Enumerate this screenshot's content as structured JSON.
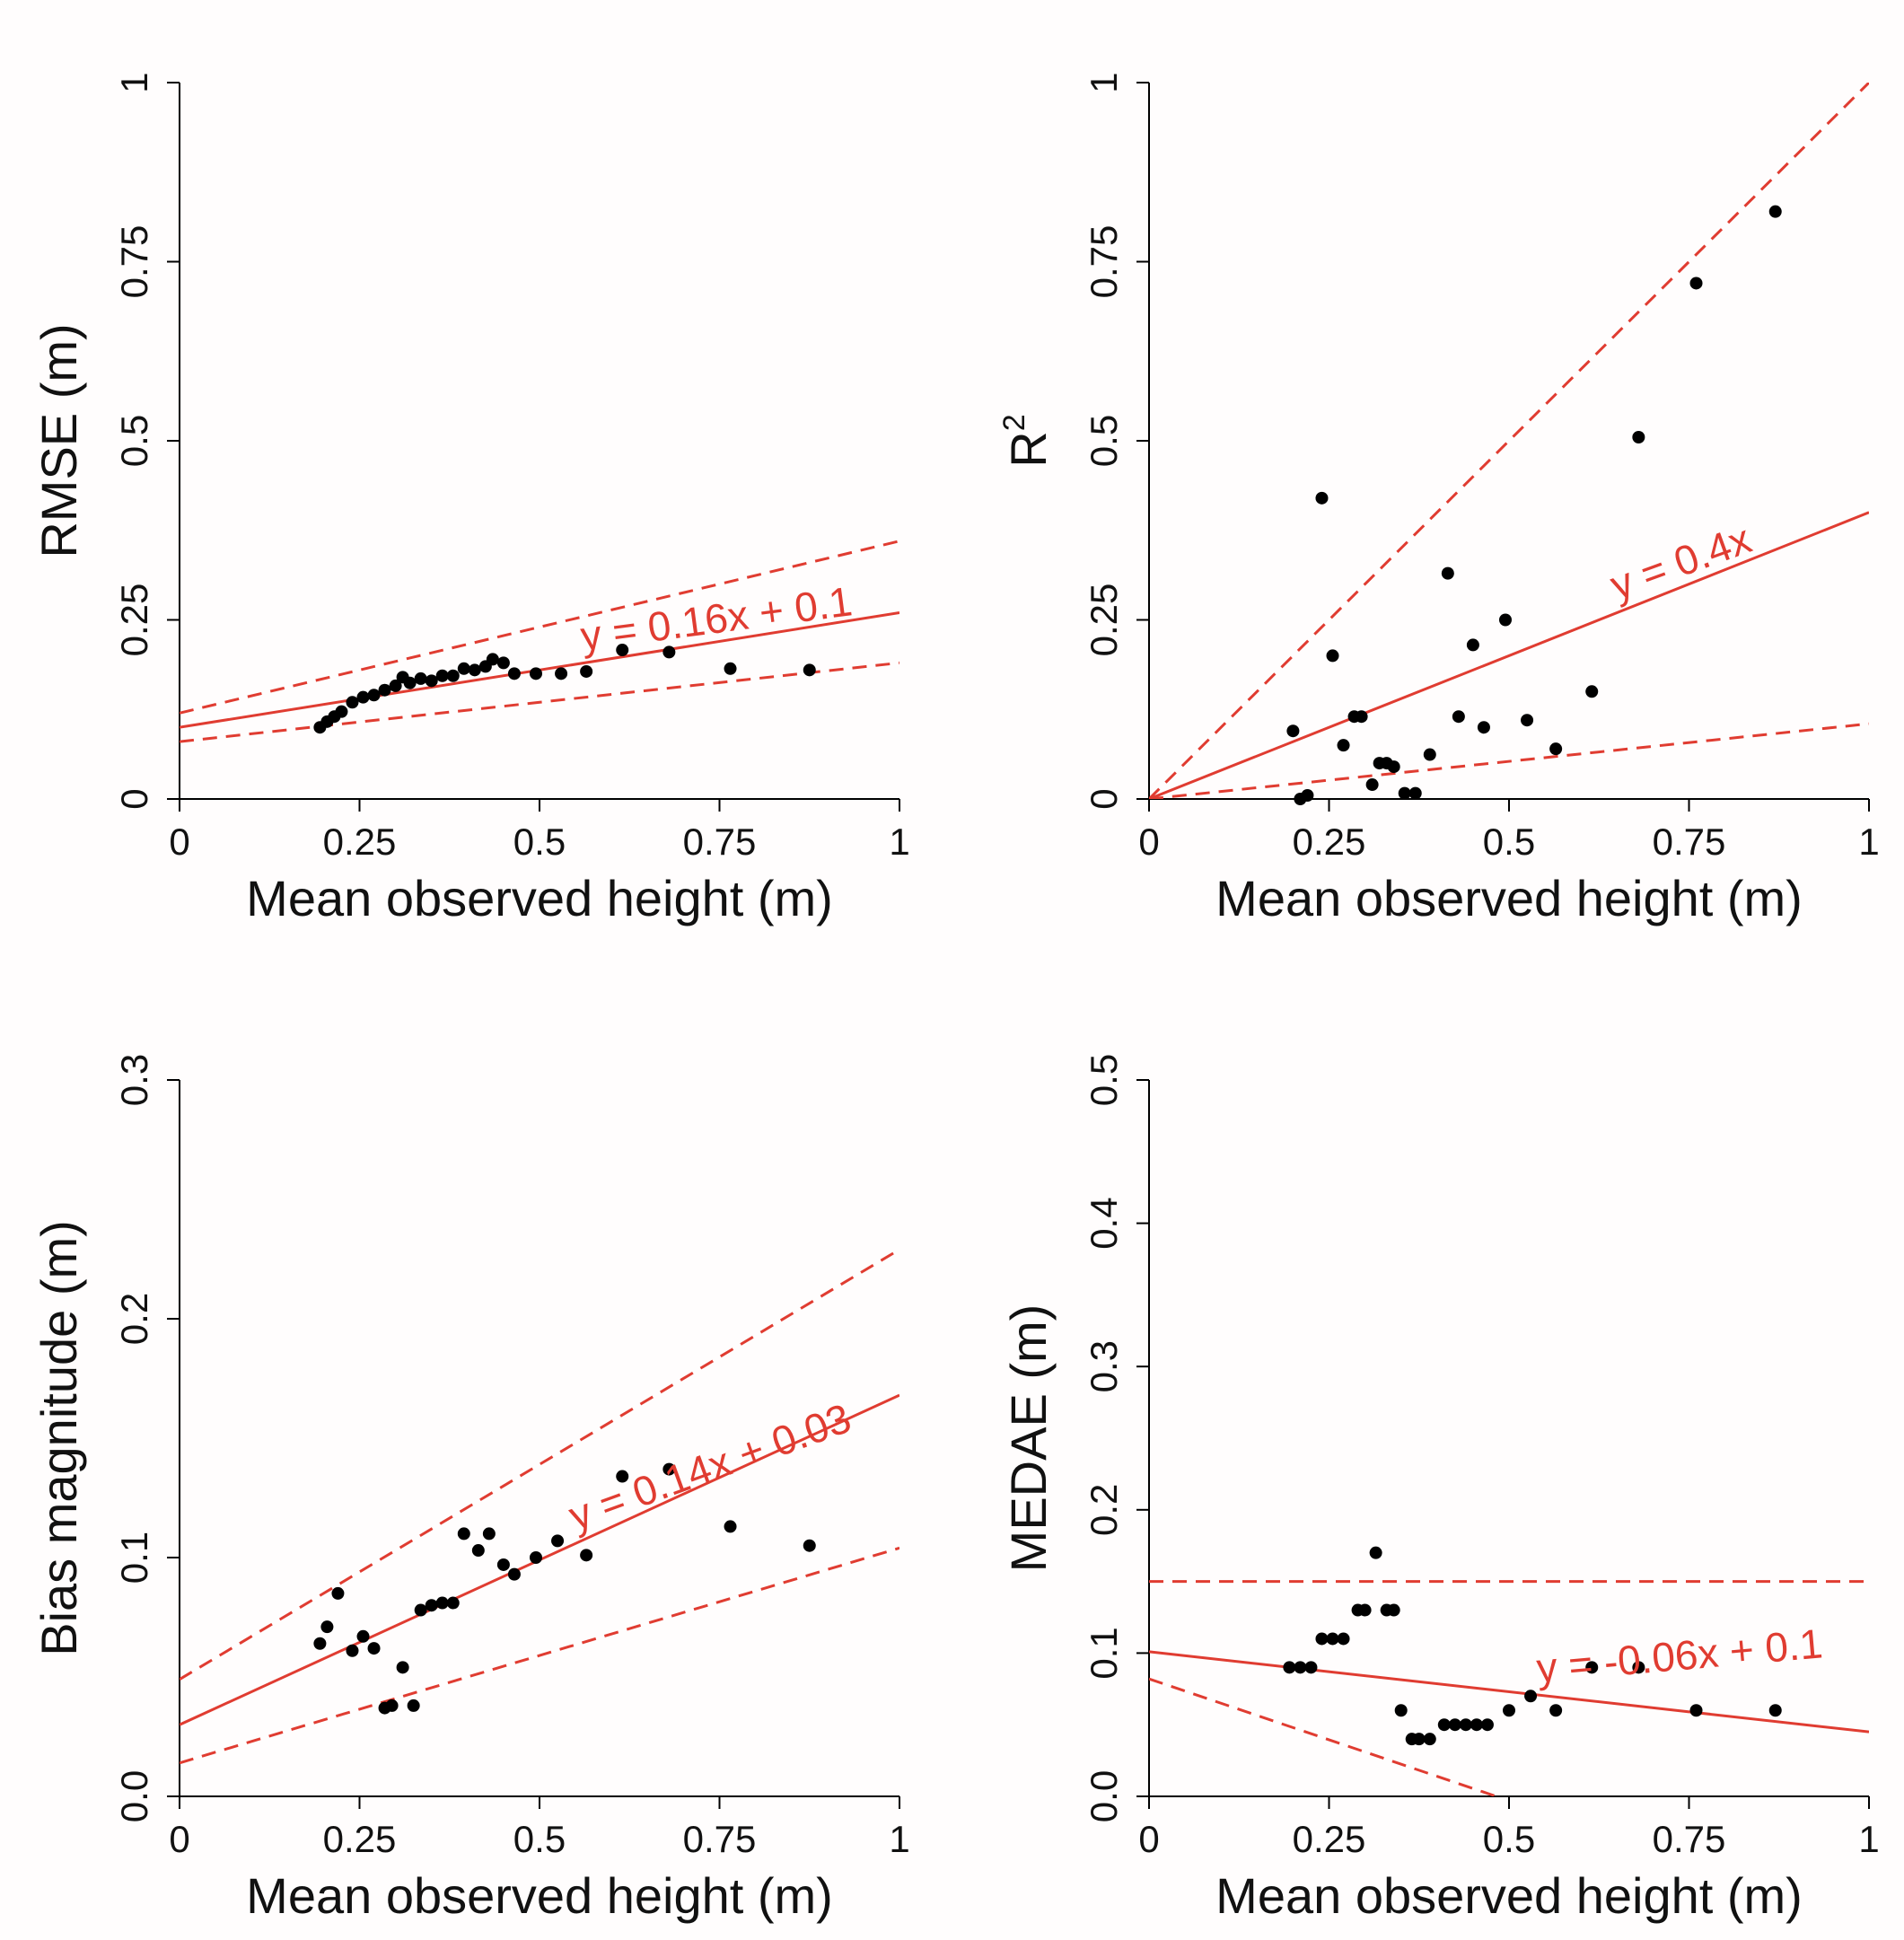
{
  "colors": {
    "fit": "#e03c31",
    "points": "#000000",
    "background": "#fffdfd"
  },
  "chart_data": [
    {
      "type": "scatter",
      "xlabel": "Mean observed height (m)",
      "ylabel": "RMSE (m)",
      "xlim": [
        0,
        1
      ],
      "ylim": [
        0,
        1
      ],
      "xticks": [
        0,
        0.25,
        0.5,
        0.75,
        1
      ],
      "xtick_labels": [
        "0",
        "0.25",
        "0.5",
        "0.75",
        "1"
      ],
      "yticks": [
        0,
        0.25,
        0.5,
        0.75,
        1
      ],
      "ytick_labels": [
        "0",
        "0.25",
        "0.5",
        "0.75",
        "1"
      ],
      "equation": "y = 0.16x + 0.1",
      "fit": {
        "slope": 0.16,
        "intercept": 0.1
      },
      "bounds": [
        {
          "slope": 0.24,
          "intercept": 0.12
        },
        {
          "slope": 0.11,
          "intercept": 0.08
        }
      ],
      "points": [
        [
          0.195,
          0.1
        ],
        [
          0.205,
          0.108
        ],
        [
          0.215,
          0.115
        ],
        [
          0.225,
          0.122
        ],
        [
          0.24,
          0.135
        ],
        [
          0.255,
          0.142
        ],
        [
          0.27,
          0.145
        ],
        [
          0.285,
          0.152
        ],
        [
          0.3,
          0.158
        ],
        [
          0.31,
          0.17
        ],
        [
          0.32,
          0.162
        ],
        [
          0.335,
          0.168
        ],
        [
          0.35,
          0.165
        ],
        [
          0.365,
          0.172
        ],
        [
          0.38,
          0.172
        ],
        [
          0.395,
          0.182
        ],
        [
          0.41,
          0.18
        ],
        [
          0.425,
          0.185
        ],
        [
          0.435,
          0.195
        ],
        [
          0.45,
          0.19
        ],
        [
          0.465,
          0.175
        ],
        [
          0.495,
          0.175
        ],
        [
          0.53,
          0.175
        ],
        [
          0.565,
          0.178
        ],
        [
          0.615,
          0.208
        ],
        [
          0.68,
          0.205
        ],
        [
          0.765,
          0.182
        ],
        [
          0.875,
          0.18
        ]
      ]
    },
    {
      "type": "scatter",
      "xlabel": "Mean observed height (m)",
      "ylabel": "R",
      "ylabel_sup": "2",
      "xlim": [
        0,
        1
      ],
      "ylim": [
        0,
        1
      ],
      "xticks": [
        0,
        0.25,
        0.5,
        0.75,
        1
      ],
      "xtick_labels": [
        "0",
        "0.25",
        "0.5",
        "0.75",
        "1"
      ],
      "yticks": [
        0,
        0.25,
        0.5,
        0.75,
        1
      ],
      "ytick_labels": [
        "0",
        "0.25",
        "0.5",
        "0.75",
        "1"
      ],
      "equation": "y = 0.4x",
      "fit": {
        "slope": 0.4,
        "intercept": 0
      },
      "bounds": [
        {
          "slope": 1.0,
          "intercept": 0
        },
        {
          "slope": 0.105,
          "intercept": 0
        }
      ],
      "points": [
        [
          0.2,
          0.095
        ],
        [
          0.21,
          0.0
        ],
        [
          0.22,
          0.005
        ],
        [
          0.24,
          0.42
        ],
        [
          0.255,
          0.2
        ],
        [
          0.27,
          0.075
        ],
        [
          0.285,
          0.115
        ],
        [
          0.295,
          0.115
        ],
        [
          0.31,
          0.02
        ],
        [
          0.32,
          0.05
        ],
        [
          0.33,
          0.05
        ],
        [
          0.34,
          0.045
        ],
        [
          0.355,
          0.008
        ],
        [
          0.37,
          0.008
        ],
        [
          0.39,
          0.062
        ],
        [
          0.415,
          0.315
        ],
        [
          0.43,
          0.115
        ],
        [
          0.45,
          0.215
        ],
        [
          0.465,
          0.1
        ],
        [
          0.495,
          0.25
        ],
        [
          0.525,
          0.11
        ],
        [
          0.565,
          0.07
        ],
        [
          0.615,
          0.15
        ],
        [
          0.68,
          0.505
        ],
        [
          0.76,
          0.72
        ],
        [
          0.87,
          0.82
        ]
      ]
    },
    {
      "type": "scatter",
      "xlabel": "Mean observed height (m)",
      "ylabel": "Bias magnitude (m)",
      "xlim": [
        0,
        1
      ],
      "ylim": [
        0,
        0.3
      ],
      "xticks": [
        0,
        0.25,
        0.5,
        0.75,
        1
      ],
      "xtick_labels": [
        "0",
        "0.25",
        "0.5",
        "0.75",
        "1"
      ],
      "yticks": [
        0,
        0.1,
        0.2,
        0.3
      ],
      "ytick_labels": [
        "0.0",
        "0.1",
        "0.2",
        "0.3"
      ],
      "equation": "y = 0.14x + 0.03",
      "fit": {
        "slope": 0.138,
        "intercept": 0.03
      },
      "bounds": [
        {
          "slope": 0.18,
          "intercept": 0.049
        },
        {
          "slope": 0.09,
          "intercept": 0.014
        }
      ],
      "points": [
        [
          0.195,
          0.064
        ],
        [
          0.205,
          0.071
        ],
        [
          0.22,
          0.085
        ],
        [
          0.24,
          0.061
        ],
        [
          0.255,
          0.067
        ],
        [
          0.27,
          0.062
        ],
        [
          0.285,
          0.037
        ],
        [
          0.295,
          0.038
        ],
        [
          0.31,
          0.054
        ],
        [
          0.325,
          0.038
        ],
        [
          0.335,
          0.078
        ],
        [
          0.35,
          0.08
        ],
        [
          0.365,
          0.081
        ],
        [
          0.38,
          0.081
        ],
        [
          0.395,
          0.11
        ],
        [
          0.415,
          0.103
        ],
        [
          0.43,
          0.11
        ],
        [
          0.45,
          0.097
        ],
        [
          0.465,
          0.093
        ],
        [
          0.495,
          0.1
        ],
        [
          0.525,
          0.107
        ],
        [
          0.565,
          0.101
        ],
        [
          0.615,
          0.134
        ],
        [
          0.68,
          0.137
        ],
        [
          0.765,
          0.113
        ],
        [
          0.875,
          0.105
        ]
      ]
    },
    {
      "type": "scatter",
      "xlabel": "Mean observed height (m)",
      "ylabel": "MEDAE (m)",
      "xlim": [
        0,
        1
      ],
      "ylim": [
        0,
        0.5
      ],
      "xticks": [
        0,
        0.25,
        0.5,
        0.75,
        1
      ],
      "xtick_labels": [
        "0",
        "0.25",
        "0.5",
        "0.75",
        "1"
      ],
      "yticks": [
        0,
        0.1,
        0.2,
        0.3,
        0.4,
        0.5
      ],
      "ytick_labels": [
        "0.0",
        "0.1",
        "0.2",
        "0.3",
        "0.4",
        "0.5"
      ],
      "equation": "y = -0.06x + 0.1",
      "fit": {
        "slope": -0.056,
        "intercept": 0.101
      },
      "bounds": [
        {
          "slope": 0,
          "intercept": 0.15
        },
        {
          "slope": -0.17,
          "intercept": 0.082
        }
      ],
      "points": [
        [
          0.195,
          0.09
        ],
        [
          0.21,
          0.09
        ],
        [
          0.225,
          0.09
        ],
        [
          0.24,
          0.11
        ],
        [
          0.255,
          0.11
        ],
        [
          0.27,
          0.11
        ],
        [
          0.29,
          0.13
        ],
        [
          0.3,
          0.13
        ],
        [
          0.315,
          0.17
        ],
        [
          0.33,
          0.13
        ],
        [
          0.34,
          0.13
        ],
        [
          0.35,
          0.06
        ],
        [
          0.365,
          0.04
        ],
        [
          0.375,
          0.04
        ],
        [
          0.39,
          0.04
        ],
        [
          0.41,
          0.05
        ],
        [
          0.425,
          0.05
        ],
        [
          0.44,
          0.05
        ],
        [
          0.455,
          0.05
        ],
        [
          0.47,
          0.05
        ],
        [
          0.5,
          0.06
        ],
        [
          0.53,
          0.07
        ],
        [
          0.565,
          0.06
        ],
        [
          0.615,
          0.09
        ],
        [
          0.68,
          0.09
        ],
        [
          0.76,
          0.06
        ],
        [
          0.87,
          0.06
        ]
      ]
    }
  ]
}
